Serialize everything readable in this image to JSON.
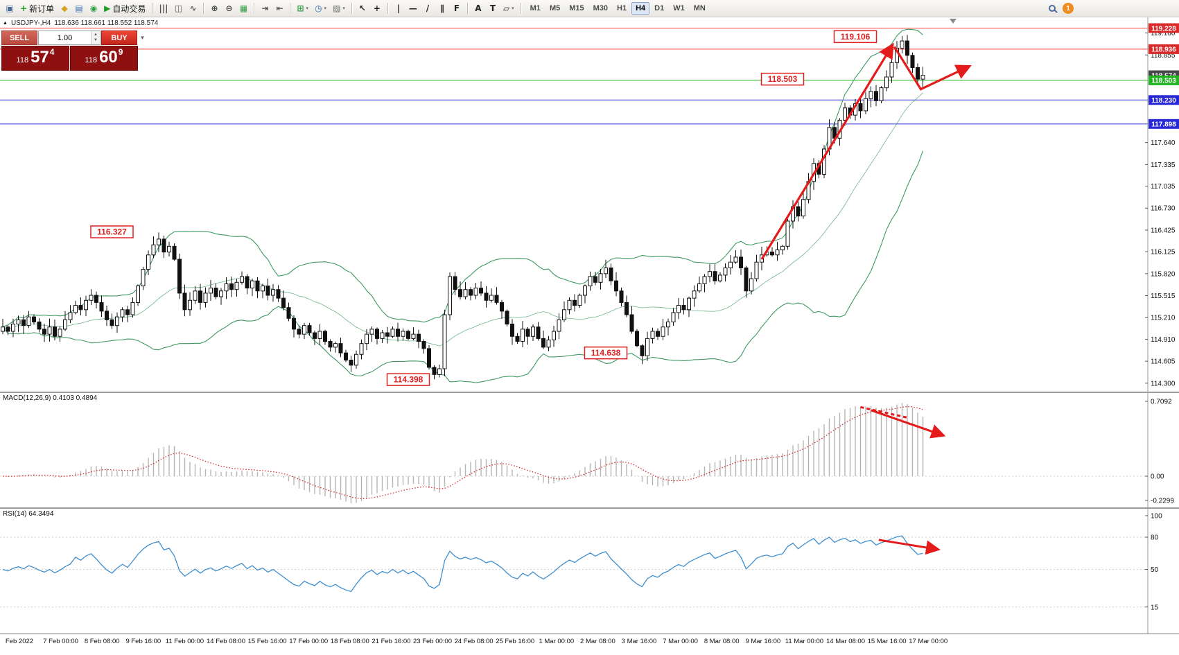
{
  "toolbar": {
    "items": [
      {
        "name": "chart-window-icon",
        "glyph": "▣",
        "color": "#4a6b9a"
      },
      {
        "name": "new-order-button",
        "glyph": "+",
        "color": "#1f9d1f",
        "label": "新订单"
      },
      {
        "name": "market-watch-icon",
        "glyph": "◆",
        "color": "#d8a01d"
      },
      {
        "name": "data-window-icon",
        "glyph": "▤",
        "color": "#3b6fb0"
      },
      {
        "name": "navigator-icon",
        "glyph": "◉",
        "color": "#2f9e44"
      },
      {
        "name": "autotrade-button",
        "glyph": "▶",
        "color": "#1f9d1f",
        "label": "自动交易"
      },
      {
        "sep": true
      },
      {
        "name": "bar-chart-icon",
        "glyph": "|||",
        "color": "#555555"
      },
      {
        "name": "candlestick-chart-icon",
        "glyph": "◫",
        "color": "#555555"
      },
      {
        "name": "line-chart-icon",
        "glyph": "∿",
        "color": "#555555"
      },
      {
        "sep": true
      },
      {
        "name": "zoom-in-icon",
        "glyph": "⊕",
        "color": "#444444"
      },
      {
        "name": "zoom-out-icon",
        "glyph": "⊖",
        "color": "#444444"
      },
      {
        "name": "tile-windows-icon",
        "glyph": "▦",
        "color": "#2f9e44"
      },
      {
        "sep": true
      },
      {
        "name": "auto-scroll-icon",
        "glyph": "⇥",
        "color": "#555555"
      },
      {
        "name": "chart-shift-icon",
        "glyph": "⇤",
        "color": "#555555"
      },
      {
        "sep": true
      },
      {
        "name": "new-chart-icon",
        "glyph": "⊞",
        "color": "#2f9e44",
        "caret": true
      },
      {
        "name": "period-selector-icon",
        "glyph": "◷",
        "color": "#2b6cb0",
        "caret": true
      },
      {
        "name": "template-icon",
        "glyph": "▨",
        "color": "#6b6b6b",
        "caret": true
      },
      {
        "sep": true
      },
      {
        "name": "cursor-icon",
        "glyph": "↖",
        "color": "#222222"
      },
      {
        "name": "crosshair-icon",
        "glyph": "+",
        "color": "#222222"
      },
      {
        "sep": true
      },
      {
        "name": "vertical-line-icon",
        "glyph": "|",
        "color": "#222222"
      },
      {
        "name": "horizontal-line-icon",
        "glyph": "—",
        "color": "#222222"
      },
      {
        "name": "trendline-icon",
        "glyph": "/",
        "color": "#222222"
      },
      {
        "name": "channel-icon",
        "glyph": "∥",
        "color": "#222222"
      },
      {
        "name": "fibonacci-icon",
        "glyph": "F",
        "color": "#222222"
      },
      {
        "sep": true
      },
      {
        "name": "text-icon",
        "glyph": "A",
        "color": "#222222"
      },
      {
        "name": "label-icon",
        "glyph": "T",
        "color": "#222222"
      },
      {
        "name": "shapes-icon",
        "glyph": "▱",
        "color": "#222222",
        "caret": true
      },
      {
        "sep": true
      }
    ],
    "timeframes": [
      "M1",
      "M5",
      "M15",
      "M30",
      "H1",
      "H4",
      "D1",
      "W1",
      "MN"
    ],
    "active_timeframe": "H4",
    "user_badge": "1"
  },
  "symbol_header": {
    "marker": "▲",
    "title": "USDJPY-,H4",
    "ohlc": "118.636 118.661 118.552 118.574"
  },
  "trade_panel": {
    "sell_label": "SELL",
    "buy_label": "BUY",
    "volume": "1.00",
    "bid_small": "118",
    "bid_big": "57",
    "bid_sup": "4",
    "ask_small": "118",
    "ask_big": "60",
    "ask_sup": "9"
  },
  "chart_data": [
    {
      "type": "candlestick",
      "title": "USDJPY-,H4",
      "ohlc_display": "118.636 118.661 118.552 118.574",
      "first_open": 115.02,
      "closes": [
        115.08,
        115.02,
        115.12,
        115.18,
        115.1,
        115.22,
        115.15,
        115.05,
        114.98,
        115.08,
        114.95,
        115.05,
        115.18,
        115.28,
        115.38,
        115.32,
        115.45,
        115.52,
        115.42,
        115.3,
        115.18,
        115.1,
        115.22,
        115.32,
        115.25,
        115.42,
        115.65,
        115.88,
        116.08,
        116.22,
        116.3,
        116.12,
        116.2,
        116.02,
        115.55,
        115.32,
        115.45,
        115.58,
        115.42,
        115.55,
        115.62,
        115.5,
        115.58,
        115.68,
        115.6,
        115.7,
        115.78,
        115.62,
        115.72,
        115.58,
        115.65,
        115.52,
        115.6,
        115.48,
        115.35,
        115.2,
        115.05,
        114.98,
        115.1,
        115.0,
        114.92,
        115.02,
        114.88,
        114.8,
        114.85,
        114.72,
        114.62,
        114.55,
        114.7,
        114.85,
        114.98,
        115.05,
        114.92,
        115.0,
        114.95,
        115.05,
        114.95,
        115.02,
        114.92,
        114.98,
        114.88,
        114.78,
        114.52,
        114.42,
        114.5,
        115.25,
        115.78,
        115.6,
        115.5,
        115.6,
        115.52,
        115.62,
        115.55,
        115.45,
        115.52,
        115.42,
        115.3,
        115.12,
        114.95,
        114.88,
        115.05,
        114.95,
        115.08,
        114.92,
        114.8,
        114.9,
        115.02,
        115.18,
        115.32,
        115.45,
        115.38,
        115.52,
        115.65,
        115.78,
        115.7,
        115.82,
        115.9,
        115.72,
        115.58,
        115.42,
        115.25,
        115.02,
        114.82,
        114.68,
        114.92,
        115.02,
        114.95,
        115.08,
        115.15,
        115.28,
        115.38,
        115.32,
        115.48,
        115.58,
        115.68,
        115.78,
        115.85,
        115.72,
        115.8,
        115.9,
        115.98,
        116.05,
        115.9,
        115.58,
        115.75,
        115.98,
        116.08,
        116.12,
        116.08,
        116.15,
        116.2,
        116.55,
        116.75,
        116.62,
        116.85,
        117.1,
        117.35,
        117.2,
        117.55,
        117.85,
        117.7,
        117.95,
        118.12,
        118.02,
        118.18,
        118.08,
        118.25,
        118.35,
        118.22,
        118.4,
        118.55,
        118.75,
        118.95,
        119.05,
        118.85,
        118.68,
        118.52,
        118.574
      ],
      "extremes": {
        "30": {
          "high": 116.327
        },
        "83": {
          "low": 114.398
        },
        "123": {
          "low": 114.638
        },
        "173": {
          "high": 119.106
        },
        "177": {
          "high": 118.661,
          "low": 118.552
        }
      },
      "bollinger": {
        "period": 20,
        "deviations": 2,
        "color": "#3d9960"
      },
      "y_axis": {
        "ticks": [
          "119.160",
          "118.855",
          "117.640",
          "117.335",
          "117.035",
          "116.730",
          "116.425",
          "116.125",
          "115.820",
          "115.515",
          "115.210",
          "114.910",
          "114.605",
          "114.300"
        ]
      },
      "badges": [
        {
          "label": "119.228",
          "bg": "#d92b2b",
          "line_color": "#ff3c3c",
          "has_line": true
        },
        {
          "label": "118.936",
          "bg": "#d92b2b",
          "line_color": "#ff3c3c",
          "has_line": true
        },
        {
          "label": "118.574",
          "bg": "#474747",
          "line_color": "",
          "has_line": false
        },
        {
          "label": "118.503",
          "bg": "#24b324",
          "line_color": "#24b324",
          "has_line": true
        },
        {
          "label": "118.230",
          "bg": "#2828d7",
          "line_color": "#3838e0",
          "has_line": true
        },
        {
          "label": "117.898",
          "bg": "#2828d7",
          "line_color": "#3838e0",
          "has_line": true
        }
      ],
      "annotations": [
        {
          "text": "116.327",
          "index": 21,
          "price": 116.4
        },
        {
          "text": "114.398",
          "index": 78,
          "price": 114.35
        },
        {
          "text": "114.638",
          "index": 116,
          "price": 114.72
        },
        {
          "text": "118.503",
          "index": 150,
          "price": 118.52
        },
        {
          "text": "119.106",
          "index": 164,
          "price": 119.11
        }
      ],
      "arrows": [
        {
          "points": [
            [
              146,
              116.02
            ],
            [
              171.2,
              119.0
            ]
          ]
        },
        {
          "points": [
            [
              171.5,
              118.97
            ],
            [
              176.6,
              118.38
            ],
            [
              186,
              118.7
            ]
          ]
        }
      ],
      "x_axis": {
        "labels": [
          "Feb 2022",
          "7 Feb 00:00",
          "8 Feb 08:00",
          "9 Feb 16:00",
          "11 Feb 00:00",
          "14 Feb 08:00",
          "15 Feb 16:00",
          "17 Feb 00:00",
          "18 Feb 08:00",
          "21 Feb 16:00",
          "23 Feb 00:00",
          "24 Feb 08:00",
          "25 Feb 16:00",
          "1 Mar 00:00",
          "2 Mar 08:00",
          "3 Mar 16:00",
          "7 Mar 00:00",
          "8 Mar 08:00",
          "9 Mar 16:00",
          "11 Mar 00:00",
          "14 Mar 08:00",
          "15 Mar 16:00",
          "17 Mar 00:00"
        ]
      }
    },
    {
      "type": "macd",
      "label": "MACD(12,26,9) 0.4103 0.4894",
      "params": [
        12,
        26,
        9
      ],
      "values_display": [
        "0.4103",
        "0.4894"
      ],
      "y_ticks": [
        "0.7092",
        "0.00",
        "-0.2299"
      ],
      "y_range": [
        -0.2299,
        0.7092
      ],
      "histogram_color": "#b5b5b5",
      "signal_color": "#d21f1f",
      "arrows": [
        {
          "points": [
            [
              165,
              0.655
            ],
            [
              174,
              0.555
            ]
          ],
          "dash": true,
          "nohead": true
        },
        {
          "points": [
            [
              167,
              0.625
            ],
            [
              181,
              0.385
            ]
          ]
        }
      ]
    },
    {
      "type": "rsi",
      "label": "RSI(14) 64.3494",
      "period": 14,
      "current_value": "64.3494",
      "y_ticks": [
        "100",
        "80",
        "50",
        "15"
      ],
      "levels": [
        80,
        50,
        15
      ],
      "line_color": "#3e8ed0",
      "arrows": [
        {
          "points": [
            [
              168.5,
              77.5
            ],
            [
              180,
              68.5
            ]
          ]
        }
      ]
    }
  ]
}
